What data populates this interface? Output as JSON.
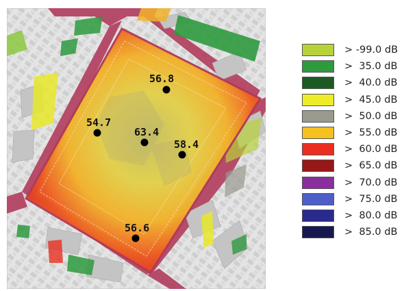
{
  "legend": {
    "items": [
      {
        "label": "> -99.0 dB",
        "color": "#b8d23a"
      },
      {
        "label": ">  35.0 dB",
        "color": "#2e9a3e"
      },
      {
        "label": ">  40.0 dB",
        "color": "#1d5a23"
      },
      {
        "label": ">  45.0 dB",
        "color": "#eeec28"
      },
      {
        "label": ">  50.0 dB",
        "color": "#9a9a8e"
      },
      {
        "label": ">  55.0 dB",
        "color": "#f5c020"
      },
      {
        "label": ">  60.0 dB",
        "color": "#ea2f20"
      },
      {
        "label": ">  65.0 dB",
        "color": "#981818"
      },
      {
        "label": ">  70.0 dB",
        "color": "#8a2ea0"
      },
      {
        "label": ">  75.0 dB",
        "color": "#4e5ec8"
      },
      {
        "label": ">  80.0 dB",
        "color": "#2a2a8c"
      },
      {
        "label": ">  85.0 dB",
        "color": "#181850"
      }
    ]
  },
  "measurements": [
    {
      "value": "56.8"
    },
    {
      "value": "54.7"
    },
    {
      "value": "63.4"
    },
    {
      "value": "58.4"
    },
    {
      "value": "56.6"
    }
  ]
}
